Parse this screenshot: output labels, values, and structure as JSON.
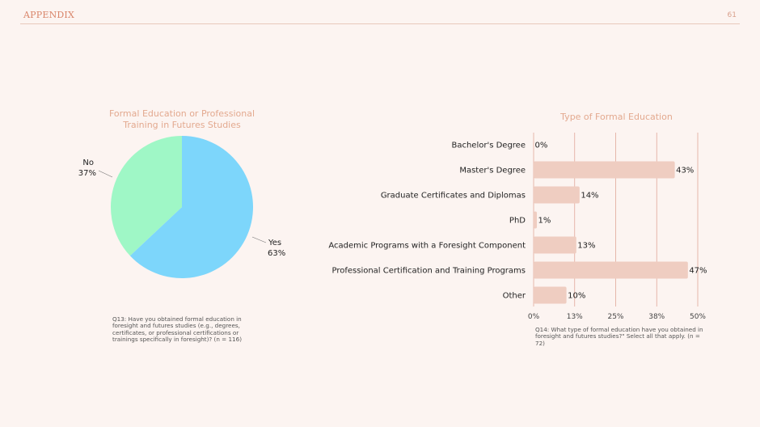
{
  "header": {
    "title": "APPENDIX",
    "page_number": "61"
  },
  "colors": {
    "background": "#fcf4f1",
    "accent": "#e3a98f",
    "pie_yes": "#7dd6fb",
    "pie_no": "#9ff7c6",
    "bar_fill": "#efcdc1",
    "gridline": "#e0a899"
  },
  "chart_data": [
    {
      "type": "pie",
      "title": "Formal Education or Professional Training in Futures Studies",
      "slices": [
        {
          "label": "Yes",
          "value": 63,
          "value_label": "63%"
        },
        {
          "label": "No",
          "value": 37,
          "value_label": "37%"
        }
      ],
      "footnote": "Q13: Have you obtained formal education in foresight and futures studies (e.g., degrees, certificates, or professional certifications or trainings specifically in foresight)? (n = 116)"
    },
    {
      "type": "bar",
      "orientation": "horizontal",
      "title": "Type of Formal Education",
      "categories": [
        "Bachelor's Degree",
        "Master's Degree",
        "Graduate Certificates and Diplomas",
        "PhD",
        "Academic Programs with a Foresight Component",
        "Professional Certification and Training Programs",
        "Other"
      ],
      "values": [
        0,
        43,
        14,
        1,
        13,
        47,
        10
      ],
      "value_labels": [
        "0%",
        "43%",
        "14%",
        "1%",
        "13%",
        "47%",
        "10%"
      ],
      "xlim": [
        0,
        50
      ],
      "x_ticks": [
        0,
        12.5,
        25,
        37.5,
        50
      ],
      "x_tick_labels": [
        "0%",
        "13%",
        "25%",
        "38%",
        "50%"
      ],
      "grid": true,
      "footnote": "Q14: What type of formal education have you obtained in foresight and futures studies?\" Select all that apply. (n = 72)"
    }
  ]
}
